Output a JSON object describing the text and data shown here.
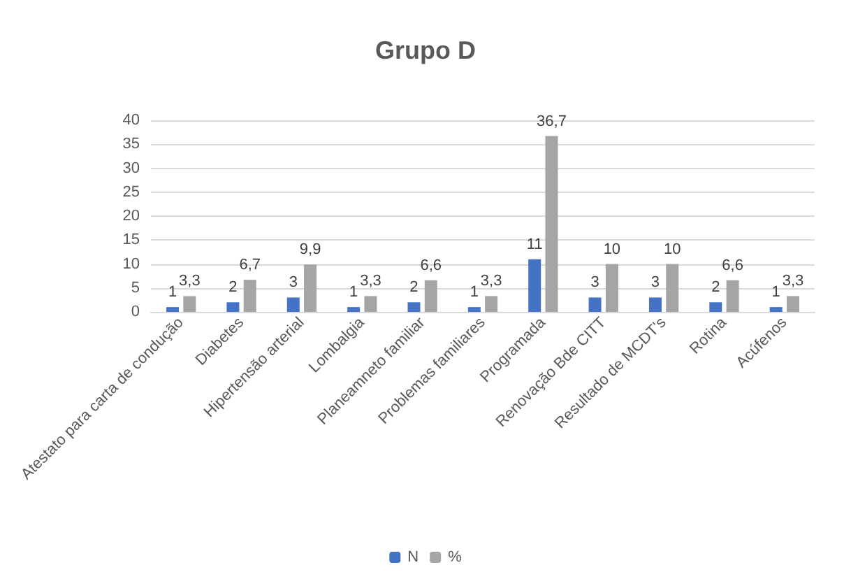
{
  "chart_data": {
    "type": "bar",
    "title": "Grupo D",
    "categories": [
      "Atestato para carta de condução",
      "Diabetes",
      "Hipertensão arterial",
      "Lombalgia",
      "Planeamneto familiar",
      "Problemas familiares",
      "Programada",
      "Renovação Bde CITT",
      "Resultado de MCDT's",
      "Rotina",
      "Acúfenos"
    ],
    "series": [
      {
        "name": "N",
        "color": "#4472c4",
        "values": [
          1,
          2,
          3,
          1,
          2,
          1,
          11,
          3,
          3,
          2,
          1
        ],
        "value_labels": [
          "1",
          "2",
          "3",
          "1",
          "2",
          "1",
          "11",
          "3",
          "3",
          "2",
          "1"
        ]
      },
      {
        "name": "%",
        "color": "#a5a5a5",
        "values": [
          3.3,
          6.7,
          9.9,
          3.3,
          6.6,
          3.3,
          36.7,
          10,
          10,
          6.6,
          3.3
        ],
        "value_labels": [
          "3,3",
          "6,7",
          "9,9",
          "3,3",
          "6,6",
          "3,3",
          "36,7",
          "10",
          "10",
          "6,6",
          "3,3"
        ]
      }
    ],
    "ylim": [
      0,
      40
    ],
    "yticks": [
      0,
      5,
      10,
      15,
      20,
      25,
      30,
      35,
      40
    ],
    "grid": "y",
    "legend": "bottom"
  }
}
